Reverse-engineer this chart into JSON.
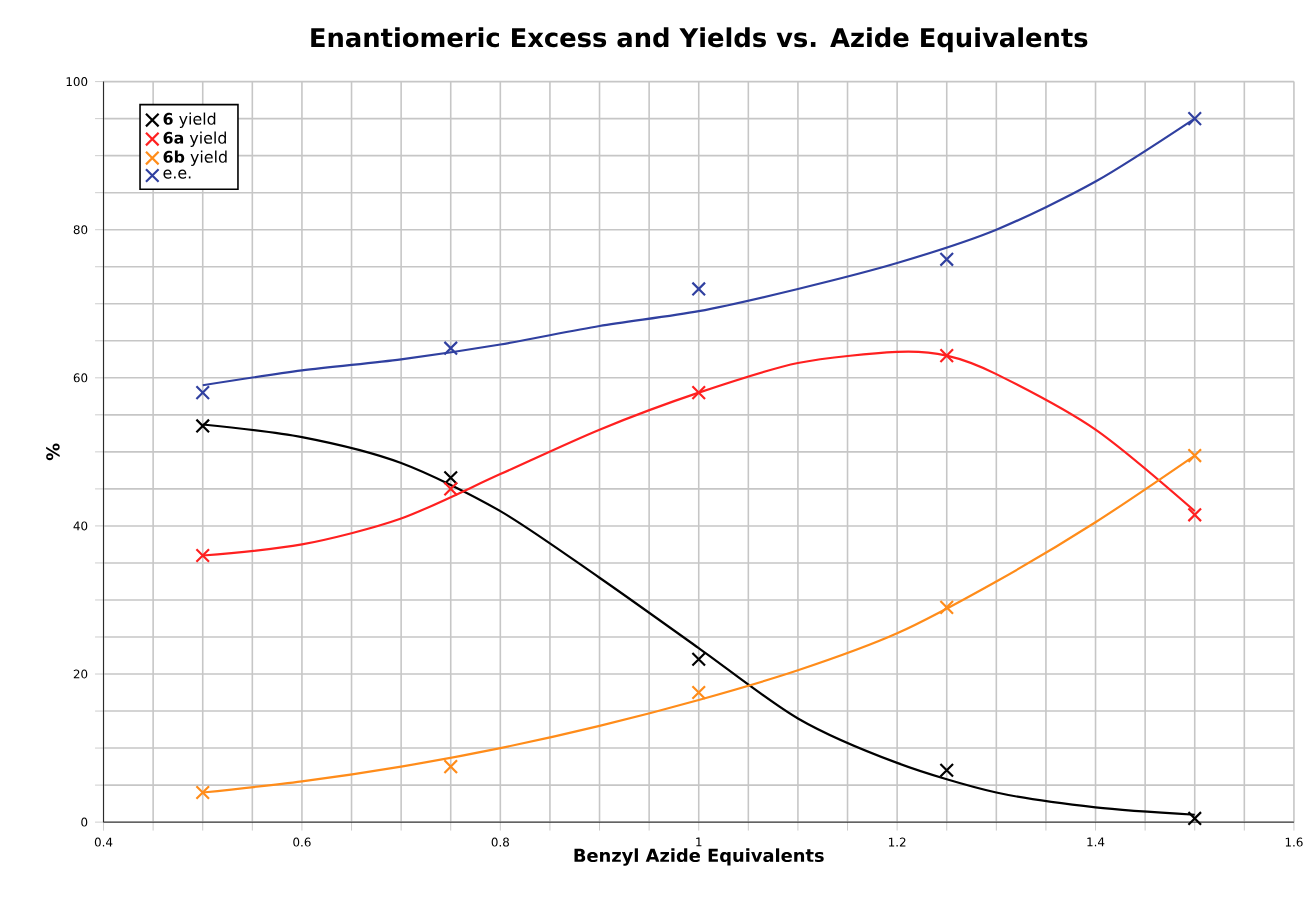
{
  "chart_data": {
    "type": "scatter",
    "title": "Enantiomeric Excess and Yields vs. Azide Equivalents",
    "xlabel": "Benzyl Azide Equivalents",
    "ylabel": "%",
    "xlim": [
      0.4,
      1.6
    ],
    "ylim": [
      0,
      100
    ],
    "xticks": [
      0.4,
      {
        "value": 0.45,
        "label": null
      },
      0.6,
      {
        "value": 0.5,
        "label": null
      },
      {
        "value": 0.55,
        "label": null
      },
      {
        "value": 0.65,
        "label": null
      },
      {
        "value": 0.7,
        "label": null
      },
      {
        "value": 0.75,
        "label": null
      },
      0.8,
      {
        "value": 0.85,
        "label": null
      },
      {
        "value": 0.9,
        "label": null
      },
      {
        "value": 0.95,
        "label": null
      },
      1,
      {
        "value": 1.05,
        "label": null
      },
      {
        "value": 1.1,
        "label": null
      },
      {
        "value": 1.15,
        "label": null
      },
      1.2,
      {
        "value": 1.25,
        "label": null
      },
      {
        "value": 1.3,
        "label": null
      },
      {
        "value": 1.35,
        "label": null
      },
      1.4,
      {
        "value": 1.45,
        "label": null
      },
      {
        "value": 1.5,
        "label": null
      },
      {
        "value": 1.55,
        "label": null
      },
      1.6
    ],
    "yticks": [
      0,
      {
        "value": 5,
        "label": null
      },
      {
        "value": 10,
        "label": null
      },
      {
        "value": 15,
        "label": null
      },
      20,
      {
        "value": 25,
        "label": null
      },
      {
        "value": 30,
        "label": null
      },
      {
        "value": 35,
        "label": null
      },
      40,
      {
        "value": 45,
        "label": null
      },
      {
        "value": 50,
        "label": null
      },
      {
        "value": 55,
        "label": null
      },
      60,
      {
        "value": 65,
        "label": null
      },
      {
        "value": 70,
        "label": null
      },
      {
        "value": 75,
        "label": null
      },
      80,
      {
        "value": 85,
        "label": null
      },
      {
        "value": 90,
        "label": null
      },
      {
        "value": 95,
        "label": null
      },
      100
    ],
    "grid": true,
    "legend": "top left",
    "series": [
      {
        "name": "**6** yield",
        "marker": "cross",
        "color": "#000000",
        "x": [
          0.5,
          0.75,
          1,
          1.25,
          1.5
        ],
        "values": [
          53.5,
          46.5,
          22,
          7,
          0.5
        ]
      },
      {
        "name": "**6a** yield",
        "marker": "cross",
        "color": "#ff2020",
        "x": [
          0.5,
          0.75,
          1,
          1.25,
          1.5
        ],
        "values": [
          36,
          45,
          58,
          63,
          41.5
        ]
      },
      {
        "name": "**6b** yield",
        "marker": "cross",
        "color": "#ff8c1a",
        "x": [
          0.5,
          0.75,
          1,
          1.25,
          1.5
        ],
        "values": [
          4,
          7.5,
          17.5,
          29,
          49.5
        ]
      },
      {
        "name": "e.e.",
        "marker": "cross",
        "color": "#3040a0",
        "x": [
          0.5,
          0.75,
          1,
          1.25,
          1.5
        ],
        "values": [
          58,
          64,
          72,
          76,
          95
        ]
      },
      {
        "type": "line",
        "marker": "none",
        "color": "#000000",
        "x": [
          0.5,
          0.6,
          0.7,
          0.8,
          0.9,
          1.0,
          1.1,
          1.2,
          1.3,
          1.4,
          1.5
        ],
        "values": [
          53.7,
          52,
          48.5,
          42,
          33,
          23.5,
          14,
          8,
          4,
          2,
          1
        ]
      },
      {
        "type": "line",
        "marker": "none",
        "color": "#ff2020",
        "x": [
          0.5,
          0.6,
          0.7,
          0.8,
          0.9,
          1.0,
          1.1,
          1.2,
          1.25,
          1.3,
          1.4,
          1.5
        ],
        "values": [
          36,
          37.5,
          41,
          47,
          53,
          58,
          62,
          63.5,
          63,
          60.5,
          53,
          42
        ]
      },
      {
        "type": "line",
        "marker": "none",
        "color": "#ff8c1a",
        "x": [
          0.5,
          0.6,
          0.7,
          0.8,
          0.9,
          1.0,
          1.1,
          1.2,
          1.3,
          1.4,
          1.5
        ],
        "values": [
          4,
          5.5,
          7.5,
          10,
          13,
          16.5,
          20.5,
          25.5,
          32.5,
          40.5,
          49.5
        ]
      },
      {
        "type": "line",
        "marker": "none",
        "color": "#3040a0",
        "x": [
          0.5,
          0.6,
          0.7,
          0.8,
          0.9,
          1.0,
          1.1,
          1.2,
          1.3,
          1.4,
          1.5
        ],
        "values": [
          59,
          61,
          62.5,
          64.5,
          67,
          69,
          72,
          75.5,
          80,
          86.5,
          95
        ]
      }
    ]
  }
}
